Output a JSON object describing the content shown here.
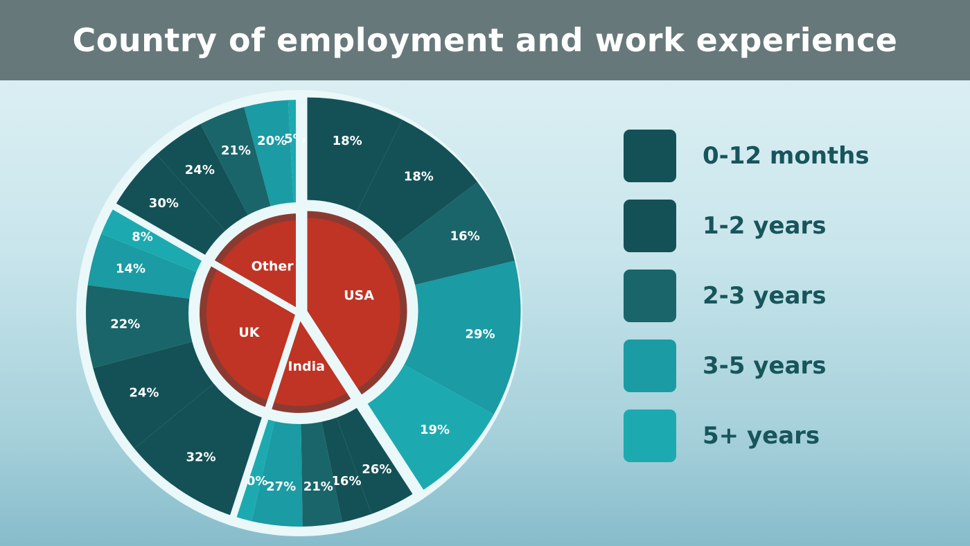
{
  "title": "Country of employment and work experience",
  "colors": {
    "experience": [
      "#145156",
      "#145156",
      "#1a6569",
      "#1b9ba3",
      "#1caab0"
    ],
    "country": "#bf3424",
    "country_ring": "#8b3a32",
    "separator": "#eaf8fa"
  },
  "legend": [
    {
      "label": "0-12 months"
    },
    {
      "label": "1-2 years"
    },
    {
      "label": "2-3 years"
    },
    {
      "label": "3-5 years"
    },
    {
      "label": "5+ years"
    }
  ],
  "chart_data": {
    "type": "pie",
    "title": "Country of employment and work experience",
    "inner": {
      "categories": [
        "USA",
        "India",
        "UK",
        "Other"
      ]
    },
    "outer": {
      "categories": [
        "0-12 months",
        "1-2 years",
        "2-3 years",
        "3-5 years",
        "5+ years"
      ],
      "series": [
        {
          "name": "USA",
          "values": [
            18,
            18,
            16,
            29,
            19
          ]
        },
        {
          "name": "India",
          "values": [
            26,
            16,
            21,
            27,
            10
          ]
        },
        {
          "name": "UK",
          "values": [
            32,
            24,
            22,
            14,
            8
          ]
        },
        {
          "name": "Other",
          "values": [
            30,
            24,
            21,
            20,
            5
          ]
        }
      ]
    }
  }
}
